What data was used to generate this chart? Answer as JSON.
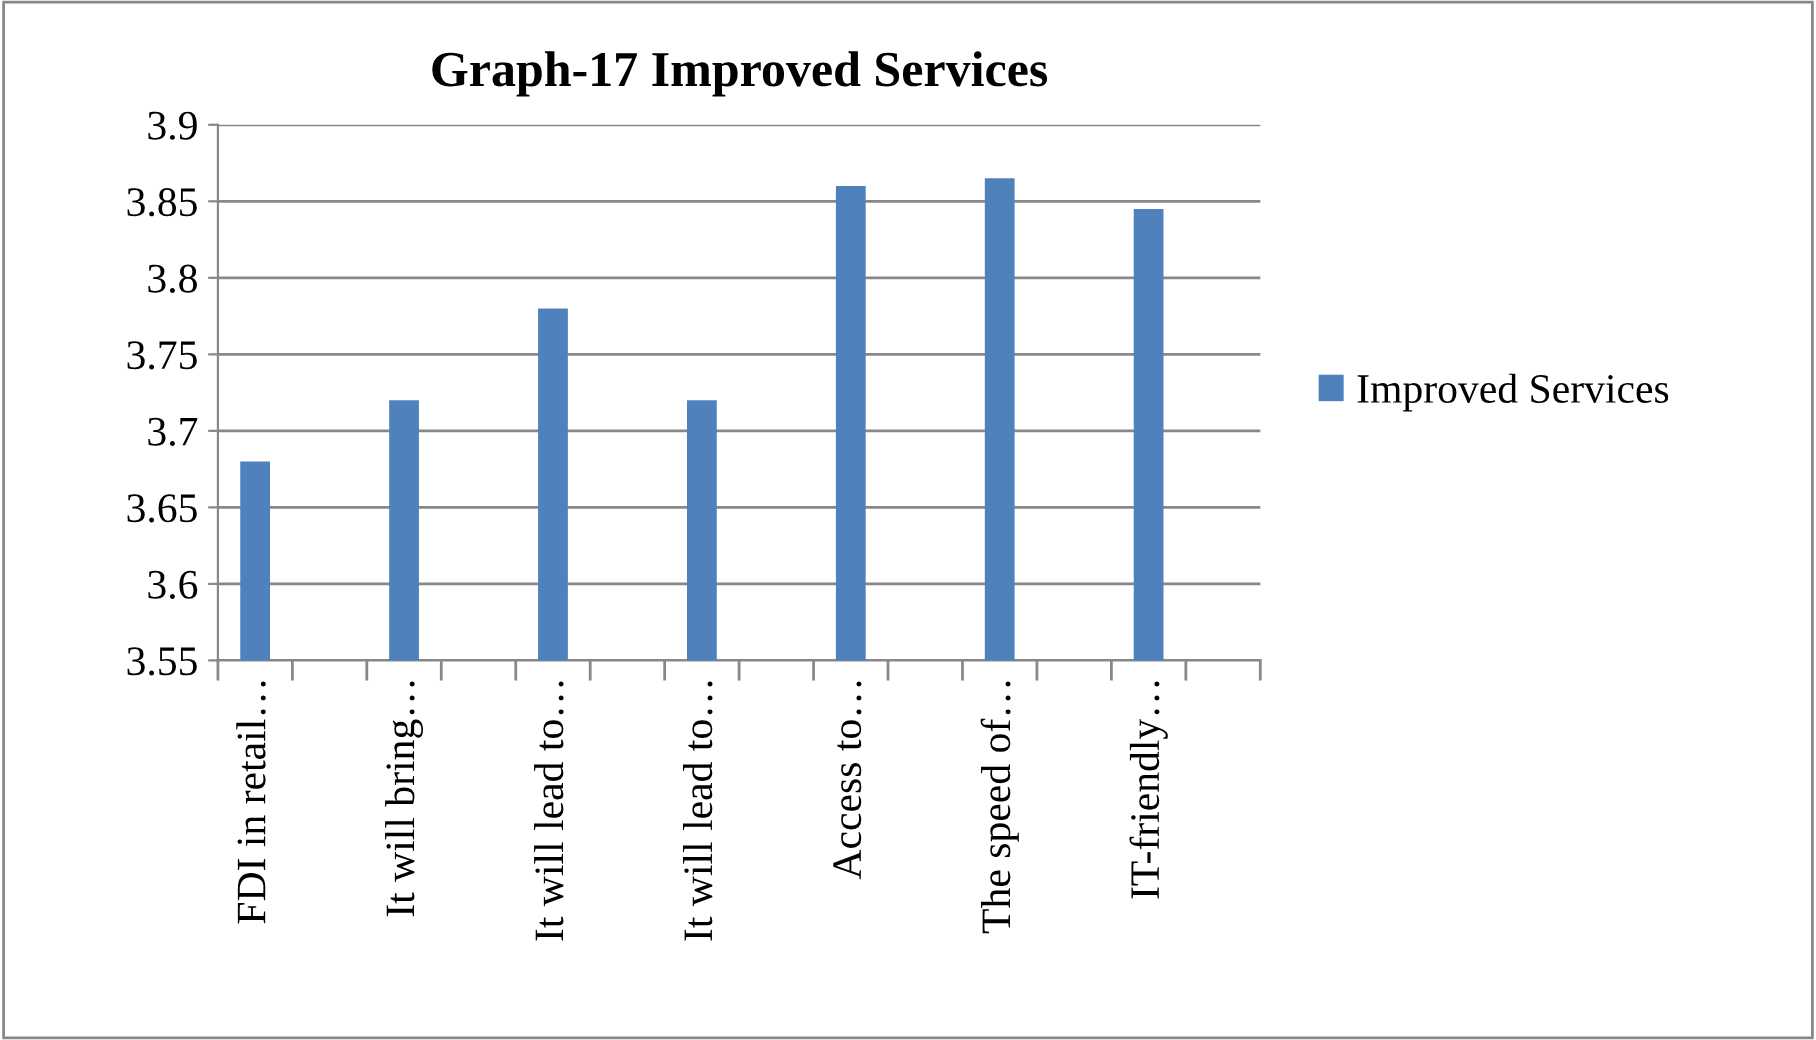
{
  "chart_data": {
    "type": "bar",
    "title": "Graph-17 Improved Services",
    "categories": [
      "FDI in retail…",
      "It will bring…",
      "It will lead to…",
      "It will lead to…",
      "Access to…",
      "The speed of…",
      "IT-friendly…"
    ],
    "series": [
      {
        "name": "Improved Services",
        "color": "#4f81bd",
        "values": [
          3.68,
          3.72,
          3.78,
          3.72,
          3.86,
          3.865,
          3.845
        ]
      }
    ],
    "ylim": [
      3.55,
      3.9
    ],
    "yticks": [
      3.55,
      3.6,
      3.65,
      3.7,
      3.75,
      3.8,
      3.85,
      3.9
    ],
    "grid": "y",
    "legend": "right"
  }
}
